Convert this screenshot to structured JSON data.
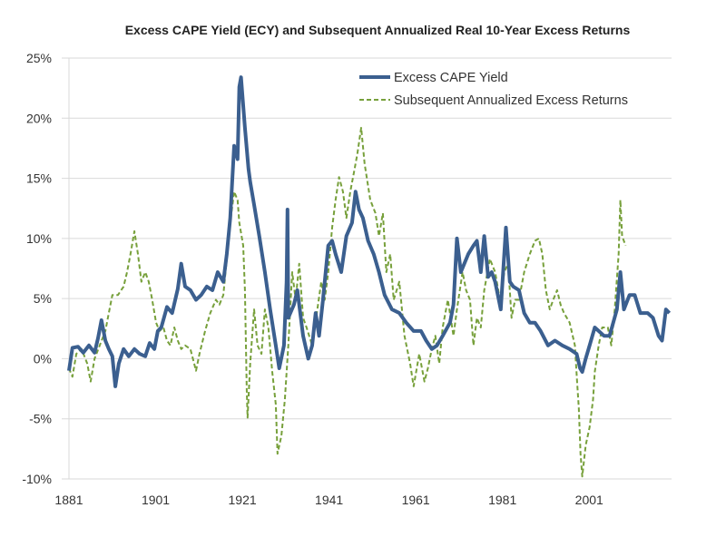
{
  "chart_data": {
    "type": "line",
    "title": "Excess CAPE Yield (ECY) and Subsequent Annualized Real 10-Year Excess Returns",
    "xlabel": "",
    "ylabel": "",
    "xlim": [
      1881,
      2020
    ],
    "ylim": [
      -10,
      25
    ],
    "x_ticks": [
      "1881",
      "1901",
      "1921",
      "1941",
      "1961",
      "1981",
      "2001"
    ],
    "y_ticks": [
      "-10%",
      "-5%",
      "0%",
      "5%",
      "10%",
      "15%",
      "20%",
      "25%"
    ],
    "y_tick_values": [
      -10,
      -5,
      0,
      5,
      10,
      15,
      20,
      25
    ],
    "grid": "horizontal",
    "legend_position": "top-right",
    "series": [
      {
        "name": "Excess CAPE Yield",
        "color": "#3b5f8f",
        "style": "solid",
        "points": [
          [
            1881.0,
            -1.0
          ],
          [
            1881.8,
            0.9
          ],
          [
            1883.1,
            1.0
          ],
          [
            1884.3,
            0.5
          ],
          [
            1885.6,
            1.1
          ],
          [
            1886.9,
            0.5
          ],
          [
            1887.7,
            1.7
          ],
          [
            1888.5,
            3.2
          ],
          [
            1889.4,
            1.5
          ],
          [
            1890.2,
            0.8
          ],
          [
            1891.0,
            0.2
          ],
          [
            1891.7,
            -2.3
          ],
          [
            1892.5,
            -0.4
          ],
          [
            1893.6,
            0.8
          ],
          [
            1894.8,
            0.2
          ],
          [
            1896.1,
            0.8
          ],
          [
            1897.3,
            0.4
          ],
          [
            1898.6,
            0.2
          ],
          [
            1899.6,
            1.3
          ],
          [
            1900.7,
            0.8
          ],
          [
            1901.5,
            2.3
          ],
          [
            1902.3,
            2.6
          ],
          [
            1903.6,
            4.3
          ],
          [
            1904.8,
            3.8
          ],
          [
            1906.1,
            5.8
          ],
          [
            1906.9,
            7.9
          ],
          [
            1907.8,
            6.0
          ],
          [
            1909.0,
            5.7
          ],
          [
            1910.3,
            4.9
          ],
          [
            1911.5,
            5.3
          ],
          [
            1912.8,
            6.0
          ],
          [
            1914.1,
            5.7
          ],
          [
            1915.3,
            7.2
          ],
          [
            1916.6,
            6.4
          ],
          [
            1917.4,
            8.7
          ],
          [
            1918.2,
            11.7
          ],
          [
            1919.1,
            17.7
          ],
          [
            1919.9,
            16.6
          ],
          [
            1920.3,
            22.6
          ],
          [
            1920.7,
            23.4
          ],
          [
            1921.6,
            19.2
          ],
          [
            1922.4,
            15.8
          ],
          [
            1922.8,
            14.7
          ],
          [
            1923.7,
            12.8
          ],
          [
            1924.9,
            10.2
          ],
          [
            1926.2,
            7.2
          ],
          [
            1927.4,
            4.1
          ],
          [
            1928.7,
            1.1
          ],
          [
            1929.5,
            -0.8
          ],
          [
            1930.6,
            1.1
          ],
          [
            1931.2,
            6.4
          ],
          [
            1931.4,
            12.4
          ],
          [
            1931.6,
            3.4
          ],
          [
            1932.9,
            4.5
          ],
          [
            1933.7,
            5.7
          ],
          [
            1935.0,
            1.9
          ],
          [
            1936.2,
            0.0
          ],
          [
            1937.1,
            1.1
          ],
          [
            1937.9,
            3.8
          ],
          [
            1938.7,
            1.9
          ],
          [
            1939.6,
            4.9
          ],
          [
            1940.8,
            9.4
          ],
          [
            1941.7,
            9.8
          ],
          [
            1942.5,
            8.7
          ],
          [
            1943.8,
            7.2
          ],
          [
            1945.0,
            10.2
          ],
          [
            1946.3,
            11.3
          ],
          [
            1947.1,
            13.9
          ],
          [
            1947.9,
            12.4
          ],
          [
            1948.8,
            11.7
          ],
          [
            1950.0,
            9.8
          ],
          [
            1951.3,
            8.7
          ],
          [
            1952.5,
            7.2
          ],
          [
            1953.8,
            5.3
          ],
          [
            1955.5,
            4.1
          ],
          [
            1957.2,
            3.8
          ],
          [
            1958.8,
            3.0
          ],
          [
            1960.5,
            2.3
          ],
          [
            1962.2,
            2.3
          ],
          [
            1963.4,
            1.5
          ],
          [
            1964.7,
            0.8
          ],
          [
            1965.9,
            1.1
          ],
          [
            1967.2,
            1.9
          ],
          [
            1968.9,
            3.0
          ],
          [
            1969.7,
            4.5
          ],
          [
            1970.5,
            10.0
          ],
          [
            1971.4,
            7.2
          ],
          [
            1973.1,
            8.7
          ],
          [
            1974.3,
            9.4
          ],
          [
            1975.1,
            9.8
          ],
          [
            1976.0,
            7.2
          ],
          [
            1976.8,
            10.2
          ],
          [
            1977.7,
            6.8
          ],
          [
            1978.5,
            7.2
          ],
          [
            1979.3,
            6.4
          ],
          [
            1980.6,
            4.1
          ],
          [
            1981.8,
            10.9
          ],
          [
            1982.7,
            6.4
          ],
          [
            1983.5,
            6.0
          ],
          [
            1984.8,
            5.7
          ],
          [
            1986.0,
            3.8
          ],
          [
            1987.3,
            3.0
          ],
          [
            1988.5,
            3.0
          ],
          [
            1989.8,
            2.3
          ],
          [
            1991.5,
            1.1
          ],
          [
            1993.1,
            1.5
          ],
          [
            1994.8,
            1.1
          ],
          [
            1996.5,
            0.8
          ],
          [
            1998.1,
            0.4
          ],
          [
            1998.9,
            -0.8
          ],
          [
            1999.4,
            -1.1
          ],
          [
            2000.2,
            0.0
          ],
          [
            2001.1,
            1.1
          ],
          [
            2002.3,
            2.6
          ],
          [
            2003.2,
            2.3
          ],
          [
            2004.4,
            1.9
          ],
          [
            2005.7,
            1.9
          ],
          [
            2007.4,
            4.1
          ],
          [
            2008.2,
            7.2
          ],
          [
            2009.0,
            4.1
          ],
          [
            2010.3,
            5.3
          ],
          [
            2011.5,
            5.3
          ],
          [
            2012.8,
            3.8
          ],
          [
            2014.5,
            3.8
          ],
          [
            2015.7,
            3.4
          ],
          [
            2017.0,
            1.9
          ],
          [
            2017.8,
            1.5
          ],
          [
            2018.7,
            4.1
          ],
          [
            2019.5,
            3.8
          ]
        ]
      },
      {
        "name": "Subsequent Annualized Excess Returns",
        "color": "#77a03b",
        "style": "dashed",
        "points": [
          [
            1881.0,
            -0.8
          ],
          [
            1881.8,
            -1.5
          ],
          [
            1882.7,
            0.4
          ],
          [
            1883.9,
            0.8
          ],
          [
            1885.2,
            -0.4
          ],
          [
            1886.0,
            -1.9
          ],
          [
            1886.9,
            0.0
          ],
          [
            1888.1,
            1.1
          ],
          [
            1889.4,
            2.3
          ],
          [
            1890.2,
            3.8
          ],
          [
            1891.0,
            5.3
          ],
          [
            1892.3,
            5.3
          ],
          [
            1893.6,
            6.0
          ],
          [
            1894.4,
            7.2
          ],
          [
            1895.2,
            8.7
          ],
          [
            1896.1,
            10.6
          ],
          [
            1896.9,
            8.7
          ],
          [
            1897.7,
            6.4
          ],
          [
            1898.6,
            7.2
          ],
          [
            1899.4,
            6.4
          ],
          [
            1900.2,
            4.9
          ],
          [
            1901.1,
            3.0
          ],
          [
            1901.9,
            2.3
          ],
          [
            1902.8,
            2.6
          ],
          [
            1903.6,
            1.5
          ],
          [
            1904.4,
            1.1
          ],
          [
            1905.3,
            2.6
          ],
          [
            1906.1,
            1.5
          ],
          [
            1906.9,
            0.8
          ],
          [
            1907.8,
            1.1
          ],
          [
            1909.0,
            0.8
          ],
          [
            1910.3,
            -1.0
          ],
          [
            1911.1,
            0.4
          ],
          [
            1912.4,
            2.3
          ],
          [
            1913.6,
            3.8
          ],
          [
            1914.9,
            4.9
          ],
          [
            1915.7,
            4.5
          ],
          [
            1916.6,
            5.3
          ],
          [
            1917.4,
            8.3
          ],
          [
            1918.2,
            11.3
          ],
          [
            1919.1,
            13.9
          ],
          [
            1919.9,
            13.2
          ],
          [
            1920.3,
            11.3
          ],
          [
            1921.2,
            9.4
          ],
          [
            1921.6,
            5.7
          ],
          [
            1922.0,
            -2.6
          ],
          [
            1922.2,
            -4.9
          ],
          [
            1922.8,
            -0.4
          ],
          [
            1923.7,
            4.1
          ],
          [
            1924.5,
            1.1
          ],
          [
            1925.4,
            0.4
          ],
          [
            1926.2,
            4.1
          ],
          [
            1927.0,
            2.6
          ],
          [
            1927.9,
            -1.1
          ],
          [
            1928.7,
            -3.8
          ],
          [
            1929.1,
            -7.9
          ],
          [
            1930.0,
            -6.4
          ],
          [
            1930.8,
            -3.4
          ],
          [
            1931.6,
            1.1
          ],
          [
            1932.5,
            7.2
          ],
          [
            1933.3,
            4.9
          ],
          [
            1934.1,
            7.9
          ],
          [
            1935.0,
            3.4
          ],
          [
            1935.8,
            2.6
          ],
          [
            1937.1,
            1.1
          ],
          [
            1938.3,
            4.1
          ],
          [
            1939.2,
            6.4
          ],
          [
            1940.0,
            4.9
          ],
          [
            1940.8,
            7.2
          ],
          [
            1941.7,
            10.9
          ],
          [
            1942.5,
            13.2
          ],
          [
            1943.3,
            15.1
          ],
          [
            1944.2,
            13.9
          ],
          [
            1945.0,
            11.7
          ],
          [
            1945.9,
            13.9
          ],
          [
            1946.7,
            15.4
          ],
          [
            1947.5,
            17.0
          ],
          [
            1948.4,
            19.2
          ],
          [
            1949.2,
            16.2
          ],
          [
            1950.5,
            13.2
          ],
          [
            1951.7,
            12.1
          ],
          [
            1952.5,
            10.2
          ],
          [
            1953.4,
            12.1
          ],
          [
            1954.2,
            7.2
          ],
          [
            1955.1,
            8.7
          ],
          [
            1955.9,
            4.9
          ],
          [
            1957.2,
            6.4
          ],
          [
            1958.4,
            1.9
          ],
          [
            1959.7,
            -0.4
          ],
          [
            1960.5,
            -2.3
          ],
          [
            1961.8,
            0.4
          ],
          [
            1963.0,
            -1.9
          ],
          [
            1963.8,
            -0.8
          ],
          [
            1964.7,
            0.8
          ],
          [
            1965.5,
            1.9
          ],
          [
            1966.4,
            -0.4
          ],
          [
            1967.2,
            2.6
          ],
          [
            1968.4,
            4.9
          ],
          [
            1969.7,
            1.9
          ],
          [
            1970.5,
            4.1
          ],
          [
            1971.8,
            7.2
          ],
          [
            1972.6,
            5.7
          ],
          [
            1973.5,
            4.9
          ],
          [
            1974.3,
            1.1
          ],
          [
            1975.1,
            3.4
          ],
          [
            1976.0,
            2.6
          ],
          [
            1976.8,
            5.7
          ],
          [
            1978.1,
            8.3
          ],
          [
            1979.3,
            7.2
          ],
          [
            1980.6,
            4.5
          ],
          [
            1981.4,
            7.2
          ],
          [
            1982.3,
            7.9
          ],
          [
            1983.1,
            3.4
          ],
          [
            1983.9,
            4.9
          ],
          [
            1984.8,
            4.9
          ],
          [
            1986.0,
            7.2
          ],
          [
            1987.3,
            8.7
          ],
          [
            1988.5,
            9.8
          ],
          [
            1989.4,
            10.0
          ],
          [
            1990.2,
            8.7
          ],
          [
            1991.0,
            5.7
          ],
          [
            1991.9,
            4.1
          ],
          [
            1992.7,
            4.9
          ],
          [
            1993.6,
            5.7
          ],
          [
            1994.4,
            4.5
          ],
          [
            1995.2,
            3.8
          ],
          [
            1996.5,
            3.0
          ],
          [
            1997.7,
            1.1
          ],
          [
            1998.2,
            -1.9
          ],
          [
            1998.6,
            -4.1
          ],
          [
            1999.0,
            -7.9
          ],
          [
            1999.4,
            -9.8
          ],
          [
            2000.2,
            -7.2
          ],
          [
            2001.1,
            -5.7
          ],
          [
            2001.9,
            -3.4
          ],
          [
            2002.3,
            -1.1
          ],
          [
            2003.2,
            1.1
          ],
          [
            2004.0,
            2.6
          ],
          [
            2005.3,
            2.6
          ],
          [
            2006.1,
            1.1
          ],
          [
            2006.9,
            4.1
          ],
          [
            2007.8,
            8.7
          ],
          [
            2008.2,
            13.2
          ],
          [
            2008.6,
            10.2
          ],
          [
            2009.4,
            9.4
          ]
        ]
      }
    ]
  }
}
